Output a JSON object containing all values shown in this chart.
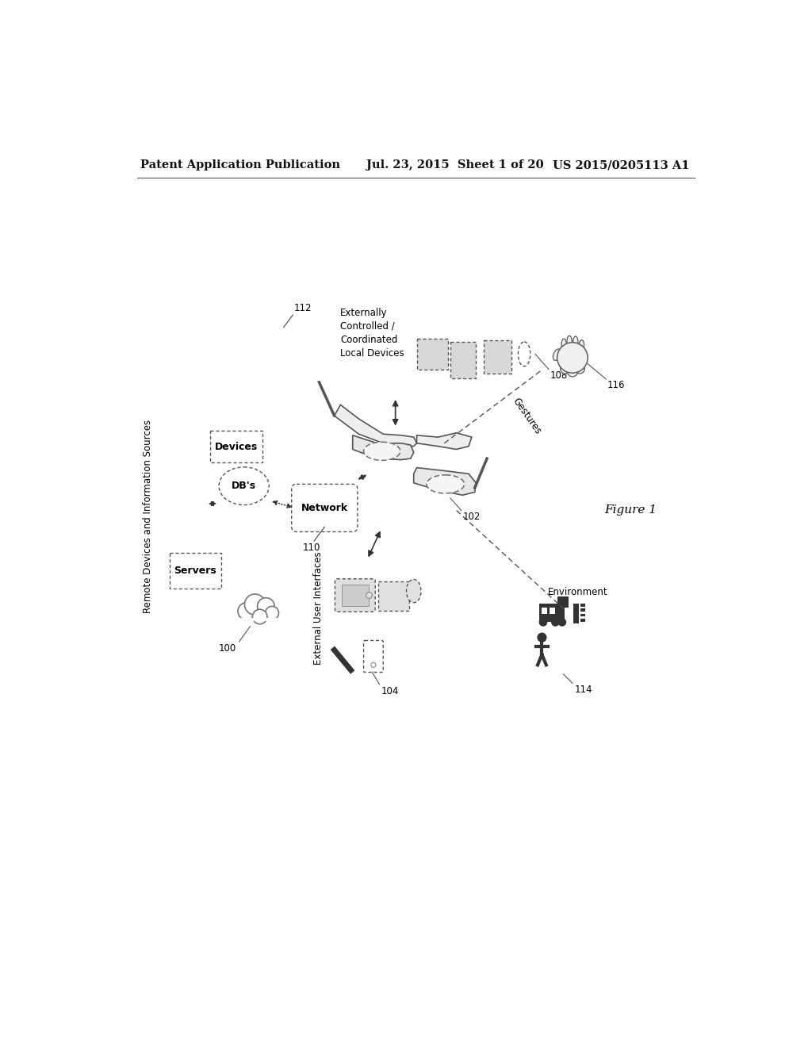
{
  "title_left": "Patent Application Publication",
  "title_mid": "Jul. 23, 2015  Sheet 1 of 20",
  "title_right": "US 2015/0205113 A1",
  "fig_label": "Figure 1",
  "background": "#ffffff",
  "label_100": "100",
  "label_102": "102",
  "label_104": "104",
  "label_108": "108",
  "label_110": "110",
  "label_112": "112",
  "label_114": "114",
  "label_116": "116",
  "remote_label": "Remote Devices and Information Sources",
  "servers_label": "Servers",
  "dbs_label": "DB's",
  "network_label": "Network",
  "devices_label": "Devices",
  "ext_controlled_label": "Externally\nControlled /\nCoordinated\nLocal Devices",
  "ext_user_label": "External User Interfaces",
  "gestures_label": "Gestures",
  "environment_label": "Environment"
}
